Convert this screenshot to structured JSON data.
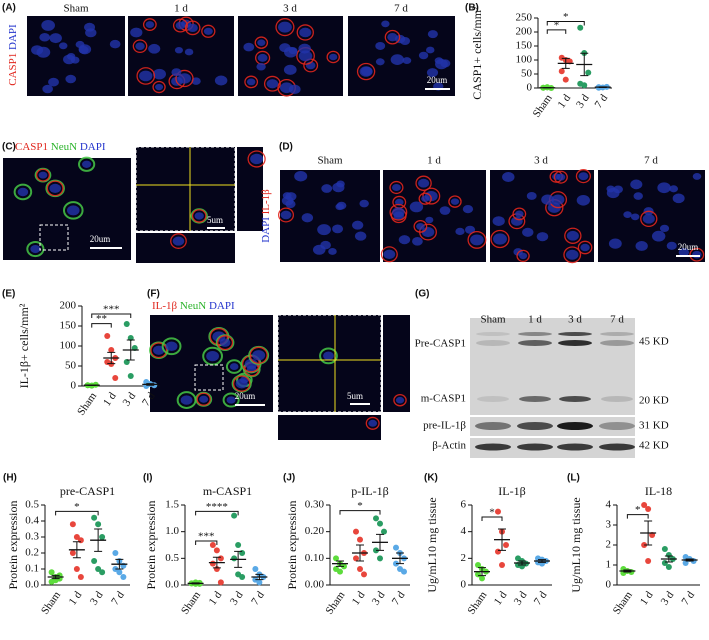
{
  "panel_labels": [
    "(A)",
    "(B)",
    "(C)",
    "(D)",
    "(E)",
    "(F)",
    "(G)",
    "(H)",
    "(I)",
    "(J)",
    "(K)",
    "(L)"
  ],
  "panel_a": {
    "stain": [
      "CASP1",
      "DAPI"
    ],
    "timepoints": [
      "Sham",
      "1 d",
      "3 d",
      "7 d"
    ],
    "scale_bar": "20um"
  },
  "panel_c": {
    "stain": [
      "CASP1",
      "NeuN",
      "DAPI"
    ],
    "scale_bars": [
      "20um",
      "5um"
    ]
  },
  "panel_d": {
    "stain": [
      "DAPI",
      "IL-1β"
    ],
    "timepoints": [
      "Sham",
      "1 d",
      "3 d",
      "7 d"
    ],
    "scale_bar": "20um"
  },
  "panel_f": {
    "stain": [
      "IL-1β",
      "NeuN",
      "DAPI"
    ],
    "scale_bars": [
      "20um",
      "5um"
    ]
  },
  "panel_g": {
    "lanes": [
      "Sham",
      "1 d",
      "3 d",
      "7 d"
    ],
    "bands": [
      "Pre-CASP1",
      "m-CASP1",
      "pre-IL-1β",
      "β-Actin"
    ],
    "sizes": [
      "45 KD",
      "20 KD",
      "31 KD",
      "42 KD"
    ]
  },
  "chart_data": [
    {
      "type": "dot",
      "ylabel": "CASP1+ cells/mm²",
      "categories": [
        "Sham",
        "1 d",
        "3 d",
        "7 d"
      ],
      "colors": [
        "#5ddc3c",
        "#e8463c",
        "#2a9d63",
        "#5aa9e6"
      ],
      "points": [
        [
          1,
          2,
          0,
          1,
          3
        ],
        [
          108,
          100,
          95,
          60,
          30
        ],
        [
          215,
          125,
          55,
          15,
          10
        ],
        [
          3,
          2,
          4,
          1
        ]
      ],
      "means": [
        1,
        88,
        84,
        3
      ],
      "errors": [
        0.5,
        18,
        40,
        1
      ],
      "ylim": [
        0,
        250
      ],
      "yticks": [
        0,
        50,
        100,
        150,
        200,
        250
      ],
      "significance": [
        "*",
        "*"
      ]
    },
    {
      "type": "dot",
      "ylabel": "IL-1β+ cells/mm²",
      "categories": [
        "Sham",
        "1 d",
        "3 d",
        "7 d"
      ],
      "colors": [
        "#5ddc3c",
        "#e8463c",
        "#2a9d63",
        "#5aa9e6"
      ],
      "points": [
        [
          2,
          1,
          3,
          2,
          1
        ],
        [
          125,
          90,
          70,
          60,
          55,
          20
        ],
        [
          155,
          120,
          95,
          60,
          25
        ],
        [
          10,
          5,
          2,
          0
        ]
      ],
      "means": [
        2,
        70,
        90,
        4
      ],
      "errors": [
        0.5,
        14,
        25,
        2
      ],
      "ylim": [
        0,
        200
      ],
      "yticks": [
        0,
        50,
        100,
        150,
        200
      ],
      "significance": [
        "**",
        "***"
      ]
    },
    {
      "type": "dot",
      "title": "pre-CASP1",
      "ylabel": "Protein expression",
      "categories": [
        "Sham",
        "1 d",
        "3 d",
        "7 d"
      ],
      "colors": [
        "#5ddc3c",
        "#e8463c",
        "#2a9d63",
        "#5aa9e6"
      ],
      "points": [
        [
          0.08,
          0.05,
          0.04,
          0.02,
          0.03,
          0.06
        ],
        [
          0.38,
          0.3,
          0.28,
          0.2,
          0.1,
          0.05
        ],
        [
          0.42,
          0.38,
          0.3,
          0.15,
          0.1,
          0.08
        ],
        [
          0.2,
          0.15,
          0.12,
          0.1,
          0.08,
          0.05
        ]
      ],
      "means": [
        0.05,
        0.22,
        0.28,
        0.13
      ],
      "errors": [
        0.01,
        0.05,
        0.07,
        0.03
      ],
      "ylim": [
        0,
        0.5
      ],
      "yticks": [
        {
          "value": 0,
          "label": "0.0"
        },
        0.1,
        0.2,
        0.3,
        0.4,
        0.5
      ],
      "significance": [
        "*"
      ]
    },
    {
      "type": "dot",
      "title": "m-CASP1",
      "ylabel": "Protein expression",
      "categories": [
        "Sham",
        "1 d",
        "3 d",
        "7 d"
      ],
      "colors": [
        "#5ddc3c",
        "#e8463c",
        "#2a9d63",
        "#5aa9e6"
      ],
      "points": [
        [
          0.03,
          0.02,
          0.04,
          0.03,
          0.05,
          0.02
        ],
        [
          0.75,
          0.65,
          0.5,
          0.4,
          0.3,
          0.05
        ],
        [
          1.3,
          0.75,
          0.6,
          0.5,
          0.2,
          0.15
        ],
        [
          0.3,
          0.2,
          0.15,
          0.1,
          0.05
        ]
      ],
      "means": [
        0.03,
        0.42,
        0.48,
        0.15
      ],
      "errors": [
        0.01,
        0.1,
        0.15,
        0.05
      ],
      "ylim": [
        0,
        1.5
      ],
      "yticks": [
        {
          "value": 0,
          "label": "0.0"
        },
        0.5,
        {
          "value": 1,
          "label": "1.0"
        },
        1.5
      ],
      "significance": [
        "***",
        "****"
      ]
    },
    {
      "type": "dot",
      "title": "p-IL-1β",
      "ylabel": "Protein expression",
      "categories": [
        "Sham",
        "1 d",
        "3 d",
        "7 d"
      ],
      "colors": [
        "#5ddc3c",
        "#e8463c",
        "#2a9d63",
        "#5aa9e6"
      ],
      "points": [
        [
          0.1,
          0.08,
          0.07,
          0.06,
          0.05
        ],
        [
          0.2,
          0.17,
          0.12,
          0.1,
          0.06,
          0.04
        ],
        [
          0.25,
          0.23,
          0.2,
          0.13,
          0.1
        ],
        [
          0.14,
          0.12,
          0.1,
          0.08,
          0.06,
          0.05
        ]
      ],
      "means": [
        0.08,
        0.12,
        0.16,
        0.1
      ],
      "errors": [
        0.01,
        0.03,
        0.03,
        0.02
      ],
      "ylim": [
        0,
        0.3
      ],
      "yticks": [
        {
          "value": 0,
          "label": "0.00"
        },
        {
          "value": 0.1,
          "label": "0.10"
        },
        {
          "value": 0.2,
          "label": "0.20"
        },
        {
          "value": 0.3,
          "label": "0.30"
        }
      ],
      "significance": [
        "*"
      ]
    },
    {
      "type": "dot",
      "title": "IL-1β",
      "ylabel": "Ug/mL10 mg tissue",
      "categories": [
        "Sham",
        "1 d",
        "3 d",
        "7 d"
      ],
      "colors": [
        "#5ddc3c",
        "#e8463c",
        "#2a9d63",
        "#5aa9e6"
      ],
      "points": [
        [
          1.5,
          1.2,
          1,
          0.8,
          0.5
        ],
        [
          5.5,
          4,
          3,
          2.5,
          1.5
        ],
        [
          2,
          1.8,
          1.6,
          1.5,
          1.4
        ],
        [
          2,
          1.9,
          1.8,
          1.7,
          1.6
        ]
      ],
      "means": [
        1,
        3.4,
        1.65,
        1.8
      ],
      "errors": [
        0.3,
        0.8,
        0.15,
        0.1
      ],
      "ylim": [
        0,
        6
      ],
      "yticks": [
        0,
        2,
        4,
        6
      ],
      "significance": [
        "*"
      ]
    },
    {
      "type": "dot",
      "title": "IL-18",
      "ylabel": "Ug/mL10 mg tissue",
      "categories": [
        "Sham",
        "1 d",
        "3 d",
        "7 d"
      ],
      "colors": [
        "#5ddc3c",
        "#e8463c",
        "#2a9d63",
        "#5aa9e6"
      ],
      "points": [
        [
          0.8,
          0.7,
          0.65,
          0.6
        ],
        [
          4,
          3.8,
          2.5,
          2,
          1.2
        ],
        [
          1.8,
          1.5,
          1.3,
          1.1,
          0.9
        ],
        [
          1.4,
          1.3,
          1.2,
          1.1
        ]
      ],
      "means": [
        0.7,
        2.6,
        1.3,
        1.25
      ],
      "errors": [
        0.05,
        0.6,
        0.15,
        0.05
      ],
      "ylim": [
        0,
        4
      ],
      "yticks": [
        0,
        1,
        2,
        3,
        4
      ],
      "significance": [
        "*"
      ]
    }
  ]
}
